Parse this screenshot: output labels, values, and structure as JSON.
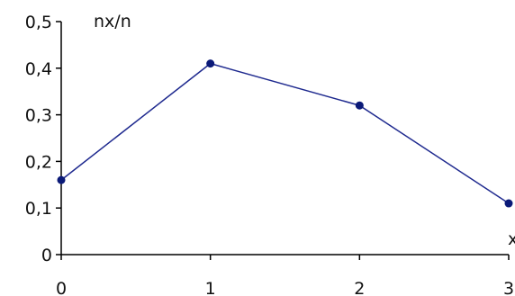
{
  "chart_data": {
    "type": "line",
    "title": "",
    "xlabel": "x",
    "ylabel": "nx/n",
    "x": [
      0,
      1,
      2,
      3
    ],
    "series": [
      {
        "values": [
          0.16,
          0.41,
          0.32,
          0.11
        ]
      }
    ],
    "x_ticks": [
      "0",
      "1",
      "2",
      "3"
    ],
    "y_ticks": [
      "0",
      "0,1",
      "0,2",
      "0,3",
      "0,4",
      "0,5"
    ],
    "xlim": [
      0,
      3
    ],
    "ylim": [
      0,
      0.5
    ],
    "grid": false,
    "legend": "none",
    "line_color": "#1f2a8f",
    "marker_color": "#0b1a78"
  }
}
